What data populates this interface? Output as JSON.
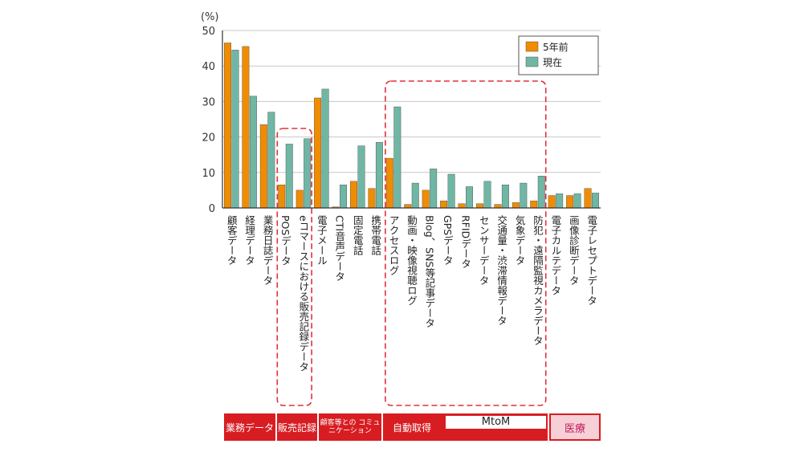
{
  "chart_data": {
    "type": "bar",
    "y_unit": "(%)",
    "ylim": [
      0,
      50
    ],
    "yticks": [
      0,
      10,
      20,
      30,
      40,
      50
    ],
    "grid": true,
    "legend_position": "top-right",
    "categories": [
      "顧客データ",
      "経理データ",
      "業務日誌データ",
      "POSデータ",
      "eコマースにおける販売記録データ",
      "電子メール",
      "CTI音声データ",
      "固定電話",
      "携帯電話",
      "アクセスログ",
      "動画・映像視聴ログ",
      "Blog、SNS等記事データ",
      "GPSデータ",
      "RFIDデータ",
      "センサーデータ",
      "交通量・渋滞情報データ",
      "気象データ",
      "防犯・遠隔監視カメラデータ",
      "電子カルテデータ",
      "画像診断データ",
      "電子レセプトデータ"
    ],
    "series": [
      {
        "name": "5年前",
        "color": "#f08c00",
        "values": [
          46.5,
          45.5,
          23.5,
          6.5,
          5,
          31,
          0.3,
          7.5,
          5.5,
          14,
          1,
          5,
          2,
          1.2,
          1.2,
          1,
          1.5,
          2,
          3.5,
          3.5,
          5.5
        ]
      },
      {
        "name": "現在",
        "color": "#6fb7a4",
        "values": [
          44.5,
          31.5,
          27,
          18,
          19.5,
          33.5,
          6.5,
          17.5,
          18.5,
          28.5,
          7,
          11,
          9.5,
          6,
          7.5,
          6.5,
          7,
          9,
          4,
          4,
          4.2
        ]
      }
    ],
    "groups": [
      {
        "label": "業務データ",
        "start": 0,
        "end": 2,
        "style": "red"
      },
      {
        "label": "販売記録",
        "start": 3,
        "end": 4,
        "style": "red",
        "dashed_box": true
      },
      {
        "label": "顧客等との コミュニケーション",
        "start": 5,
        "end": 8,
        "style": "red"
      },
      {
        "label": "自動取得",
        "start": 9,
        "end": 17,
        "style": "red",
        "dashed_box": true,
        "sub_label": "MtoM"
      },
      {
        "label": "医療",
        "start": 18,
        "end": 20,
        "style": "pink"
      }
    ]
  }
}
